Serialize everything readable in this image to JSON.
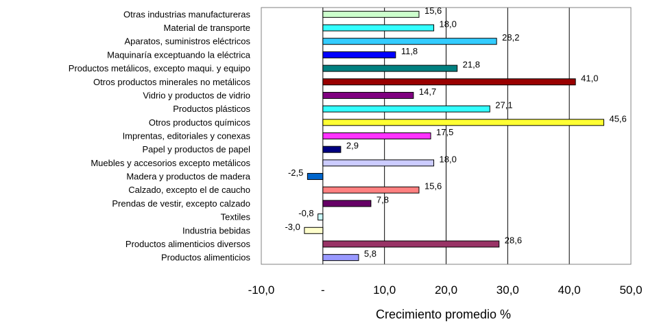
{
  "chart_data": {
    "type": "bar",
    "orientation": "horizontal",
    "title": "",
    "xlabel": "Crecimiento promedio %",
    "ylabel": "",
    "xlim": [
      -10,
      50
    ],
    "grid": true,
    "legend": "none",
    "x_ticks": [
      -10,
      0,
      10,
      20,
      30,
      40,
      50
    ],
    "x_tick_labels": [
      "-10,0",
      "-",
      "10,0",
      "20,0",
      "30,0",
      "40,0",
      "50,0"
    ],
    "categories": [
      "Otras industrias manufactureras",
      "Material de transporte",
      "Aparatos, suministros eléctricos",
      "Maquinaría exceptuando la eléctrica",
      "Productos metálicos, excepto maqui. y equipo",
      "Otros productos minerales no metálicos",
      "Vidrio y productos de vidrio",
      "Productos plásticos",
      "Otros productos químicos",
      "Imprentas, editoriales y conexas",
      "Papel y productos de papel",
      "Muebles y accesorios excepto metálicos",
      "Madera y productos de madera",
      "Calzado, excepto el de caucho",
      "Prendas de vestir, excepto calzado",
      "Textiles",
      "Industria bebidas",
      "Productos alimenticios diversos",
      "Productos alimenticios"
    ],
    "values": [
      15.6,
      18.0,
      28.2,
      11.8,
      21.8,
      41.0,
      14.7,
      27.1,
      45.6,
      17.5,
      2.9,
      18.0,
      -2.5,
      15.6,
      7.8,
      -0.8,
      -3.0,
      28.6,
      5.8
    ],
    "value_labels": [
      "15,6",
      "18,0",
      "28,2",
      "11,8",
      "21,8",
      "41,0",
      "14,7",
      "27,1",
      "45,6",
      "17,5",
      "2,9",
      "18,0",
      "-2,5",
      "15,6",
      "7,8",
      "-0,8",
      "-3,0",
      "28,6",
      "5,8"
    ],
    "colors": [
      "#ccffcc",
      "#33ffff",
      "#33ccff",
      "#0000ff",
      "#008080",
      "#990000",
      "#800080",
      "#33ffff",
      "#ffff33",
      "#ff33ff",
      "#000080",
      "#ccccff",
      "#0066cc",
      "#ff8080",
      "#660066",
      "#ccffff",
      "#ffffcc",
      "#993366",
      "#9999ff"
    ]
  }
}
